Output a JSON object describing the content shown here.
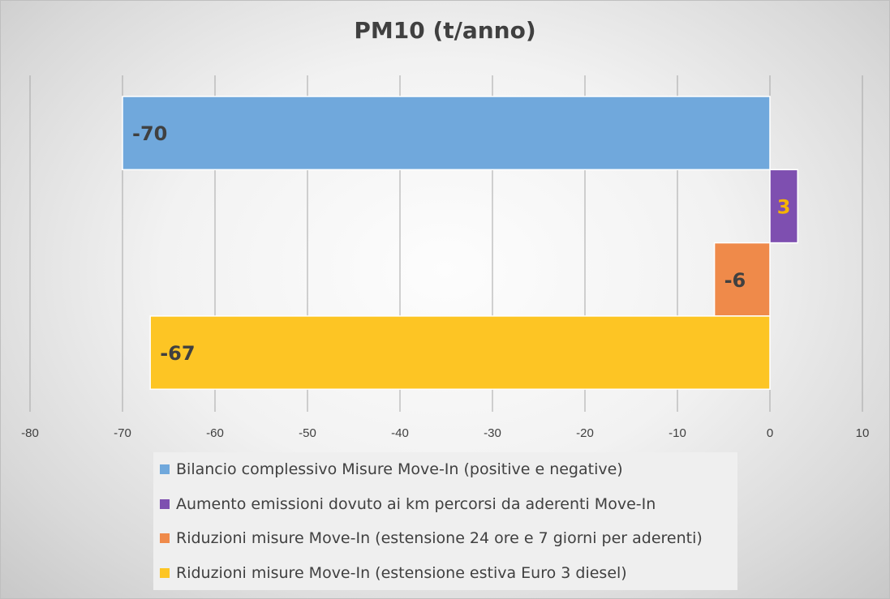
{
  "chart_data": {
    "type": "bar",
    "orientation": "horizontal",
    "title": "PM10 (t/anno)",
    "xlabel": "",
    "ylabel": "",
    "xlim": [
      -80,
      10
    ],
    "x_ticks": [
      -80,
      -70,
      -60,
      -50,
      -40,
      -30,
      -20,
      -10,
      0,
      10
    ],
    "grid": true,
    "legend_position": "bottom",
    "series": [
      {
        "name": "Bilancio complessivo Misure Move-In (positive e negative)",
        "value": -70,
        "label": "-70",
        "color": "#70a8dc",
        "label_color": "#404040"
      },
      {
        "name": "Aumento emissioni dovuto ai km percorsi da aderenti Move-In",
        "value": 3,
        "label": "3",
        "color": "#7e4fb0",
        "label_color": "#f5b400"
      },
      {
        "name": "Riduzioni misure Move-In (estensione 24 ore e 7 giorni per aderenti)",
        "value": -6,
        "label": "-6",
        "color": "#ef8a4a",
        "label_color": "#404040"
      },
      {
        "name": "Riduzioni misure Move-In (estensione estiva Euro 3 diesel)",
        "value": -67,
        "label": "-67",
        "color": "#fdc524",
        "label_color": "#404040"
      }
    ]
  }
}
